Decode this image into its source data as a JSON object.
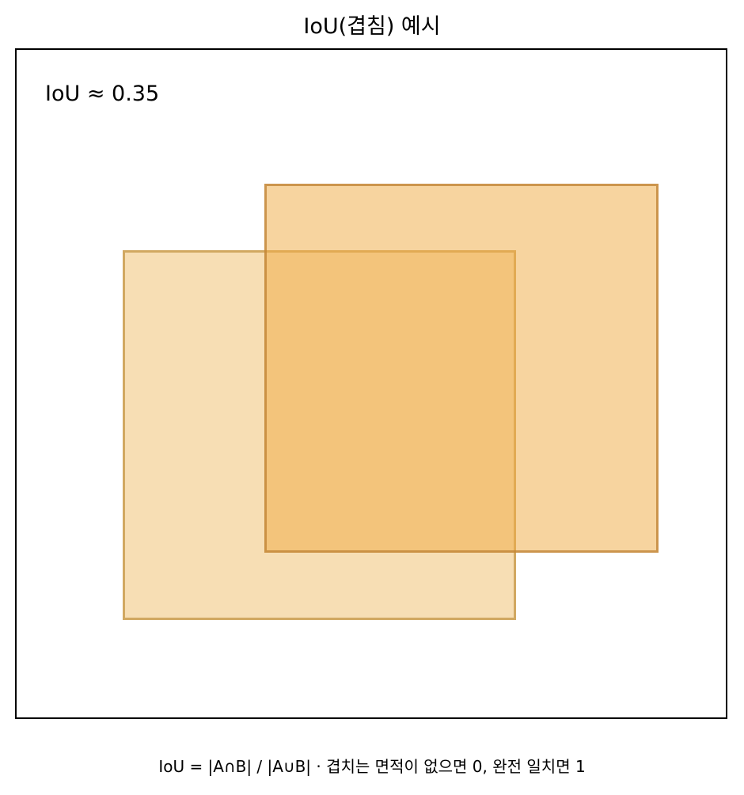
{
  "title": "IoU(겹침) 예시",
  "iou_label": "IoU ≈ 0.35",
  "caption": "IoU = |A∩B| / |A∪B|  ·  겹치는 면적이 없으면 0, 완전 일치면 1",
  "colors": {
    "box_a_fill": "rgba(240, 190, 105, 0.50)",
    "box_a_border": "rgba(196, 150, 70, 0.75)",
    "box_b_fill": "rgba(240, 172, 70, 0.52)",
    "box_b_border": "rgba(190, 128, 50, 0.75)",
    "frame_border": "#000000",
    "background": "#ffffff"
  }
}
